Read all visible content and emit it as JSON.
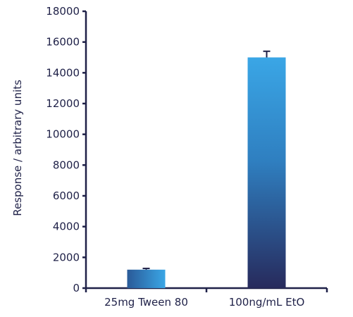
{
  "chart_data": {
    "type": "bar",
    "categories": [
      "25mg Tween 80",
      "100ng/mL EtO"
    ],
    "values": [
      1200,
      15000
    ],
    "error_bars": [
      80,
      400
    ],
    "title": "",
    "xlabel": "",
    "ylabel": "Response / arbitrary units",
    "ylim": [
      0,
      18000
    ],
    "yticks": [
      0,
      2000,
      4000,
      6000,
      8000,
      10000,
      12000,
      14000,
      16000,
      18000
    ],
    "ytick_labels": [
      "0",
      "2000",
      "4000",
      "6000",
      "8000",
      "10000",
      "12000",
      "14000",
      "16000",
      "18000"
    ],
    "grid": false,
    "legend": "none",
    "colors": {
      "axis": "#1f2148",
      "text": "#1f2148",
      "bar_top": "#3aa6e6",
      "bar_bottom": "#272a5c",
      "errorbar": "#1f2148"
    }
  }
}
